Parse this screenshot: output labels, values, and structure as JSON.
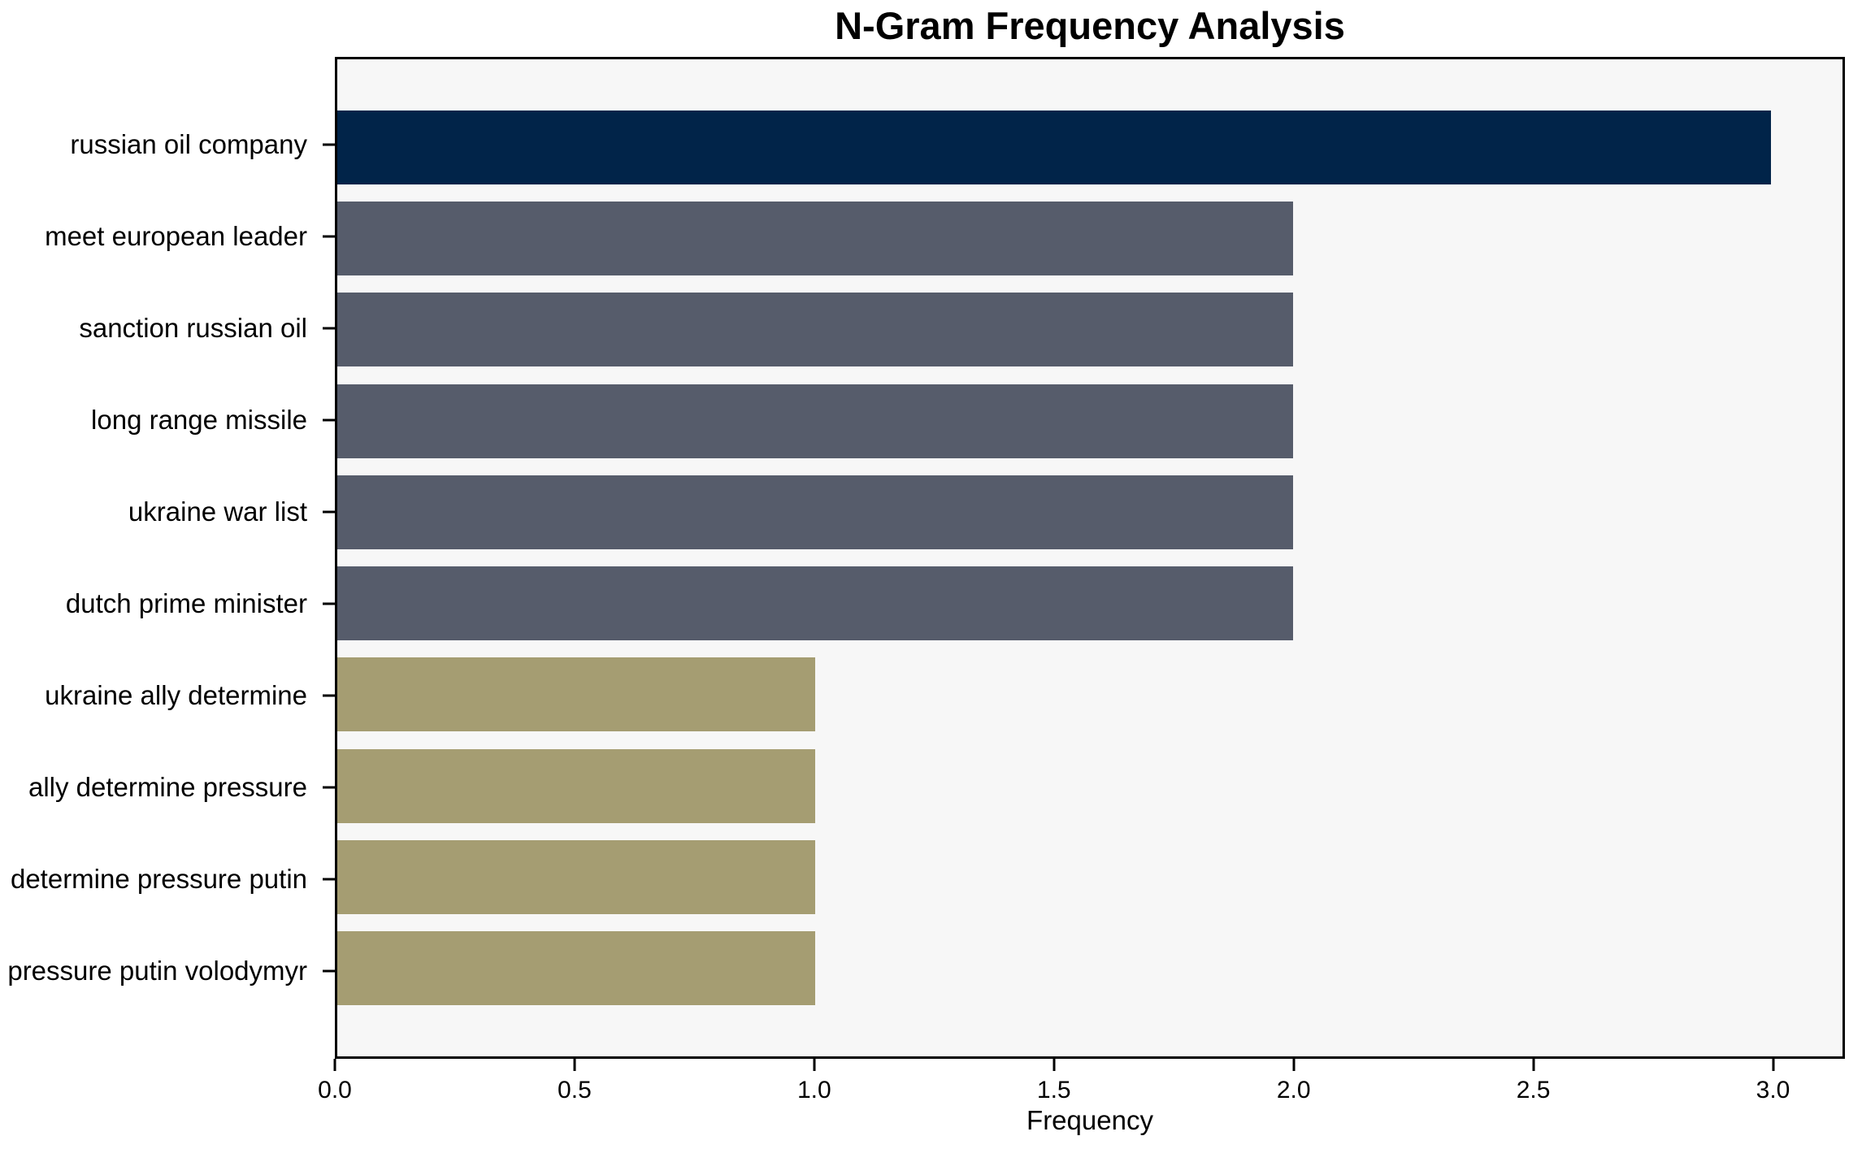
{
  "chart_data": {
    "type": "bar",
    "orientation": "horizontal",
    "title": "N-Gram Frequency Analysis",
    "xlabel": "Frequency",
    "ylabel": "",
    "categories": [
      "russian oil company",
      "meet european leader",
      "sanction russian oil",
      "long range missile",
      "ukraine war list",
      "dutch prime minister",
      "ukraine ally determine",
      "ally determine pressure",
      "determine pressure putin",
      "pressure putin volodymyr"
    ],
    "values": [
      3,
      2,
      2,
      2,
      2,
      2,
      1,
      1,
      1,
      1
    ],
    "bar_colors": [
      "#012449",
      "#565c6b",
      "#565c6b",
      "#565c6b",
      "#565c6b",
      "#565c6b",
      "#a59d72",
      "#a59d72",
      "#a59d72",
      "#a59d72"
    ],
    "xlim": [
      0,
      3.15
    ],
    "xticks": [
      0.0,
      0.5,
      1.0,
      1.5,
      2.0,
      2.5,
      3.0
    ],
    "xtick_labels": [
      "0.0",
      "0.5",
      "1.0",
      "1.5",
      "2.0",
      "2.5",
      "3.0"
    ],
    "grid": false,
    "legend": null,
    "colors": {
      "plot_background": "#f7f7f7",
      "figure_background": "#ffffff",
      "spine": "#000000",
      "text": "#000000"
    }
  }
}
